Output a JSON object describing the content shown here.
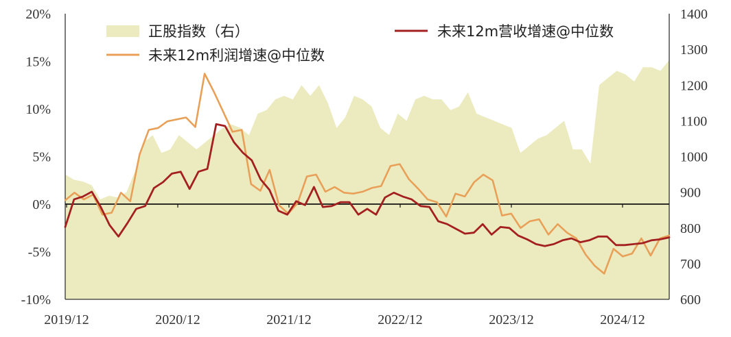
{
  "chart_data": {
    "type": "line",
    "x_ticks": [
      "2019/12",
      "2020/12",
      "2021/12",
      "2022/12",
      "2023/12",
      "2024/12"
    ],
    "y_left": {
      "ticks": [
        "20%",
        "15%",
        "10%",
        "5%",
        "0%",
        "-5%",
        "-10%"
      ],
      "range": [
        -10,
        20
      ]
    },
    "y_right": {
      "ticks": [
        "1400",
        "1300",
        "1200",
        "1100",
        "1000",
        "900",
        "800",
        "700",
        "600"
      ],
      "range": [
        600,
        1400
      ]
    },
    "colors": {
      "index_fill": "#ecebbf",
      "revenue": "#a31f20",
      "profit": "#e8a058"
    },
    "series": [
      {
        "name": "正股指数（右）",
        "axis": "right",
        "kind": "area",
        "values": [
          950,
          935,
          930,
          920,
          880,
          890,
          885,
          900,
          960,
          1040,
          1060,
          1010,
          1020,
          1060,
          1040,
          1020,
          1040,
          1060,
          1080,
          1090,
          1080,
          1060,
          1120,
          1130,
          1160,
          1170,
          1160,
          1200,
          1170,
          1200,
          1150,
          1080,
          1110,
          1170,
          1160,
          1140,
          1080,
          1060,
          1120,
          1100,
          1160,
          1170,
          1160,
          1160,
          1130,
          1140,
          1180,
          1120,
          1110,
          1100,
          1090,
          1080,
          1010,
          1030,
          1050,
          1060,
          1080,
          1100,
          1020,
          1020,
          980,
          1200,
          1220,
          1240,
          1230,
          1210,
          1250,
          1250,
          1240,
          1270
        ]
      },
      {
        "name": "未来12m营收增速@中位数",
        "axis": "left",
        "kind": "line",
        "values": [
          -2.4,
          0.5,
          0.8,
          1.3,
          -0.3,
          -2.2,
          -3.4,
          -2.0,
          -0.5,
          -0.2,
          1.7,
          2.3,
          3.2,
          3.4,
          1.6,
          3.4,
          3.7,
          8.4,
          8.2,
          6.5,
          5.4,
          4.6,
          2.6,
          1.5,
          -0.7,
          -1.1,
          0.3,
          -0.1,
          1.8,
          -0.3,
          -0.2,
          0.2,
          0.2,
          -1.1,
          -0.5,
          -1.1,
          0.7,
          1.2,
          0.8,
          0.5,
          -0.2,
          -0.3,
          -1.8,
          -2.1,
          -2.6,
          -3.1,
          -3.0,
          -2.1,
          -3.2,
          -2.4,
          -2.5,
          -3.3,
          -3.7,
          -4.2,
          -4.4,
          -4.2,
          -3.8,
          -3.6,
          -4.0,
          -3.8,
          -3.4,
          -3.4,
          -4.3,
          -4.3,
          -4.2,
          -4.1,
          -3.8,
          -3.7,
          -3.5
        ]
      },
      {
        "name": "未来12m利润增速@中位数",
        "axis": "left",
        "kind": "line",
        "values": [
          0.4,
          1.2,
          0.5,
          1.0,
          -1.1,
          -0.9,
          1.2,
          0.3,
          5.2,
          7.8,
          8.0,
          8.7,
          8.9,
          9.1,
          8.1,
          13.7,
          11.8,
          9.7,
          7.6,
          7.8,
          2.1,
          1.4,
          3.6,
          -0.1,
          -1.0,
          0.1,
          2.9,
          3.1,
          1.3,
          1.8,
          1.2,
          1.1,
          1.3,
          1.7,
          1.9,
          4.0,
          4.2,
          2.6,
          1.6,
          0.5,
          0.2,
          -1.3,
          1.1,
          0.8,
          2.3,
          3.1,
          2.5,
          -1.2,
          -1.0,
          -2.5,
          -1.8,
          -1.6,
          -3.2,
          -2.1,
          -3.0,
          -3.6,
          -5.3,
          -6.5,
          -7.3,
          -4.7,
          -5.5,
          -5.2,
          -3.6,
          -5.4,
          -3.6,
          -3.3
        ]
      }
    ]
  }
}
